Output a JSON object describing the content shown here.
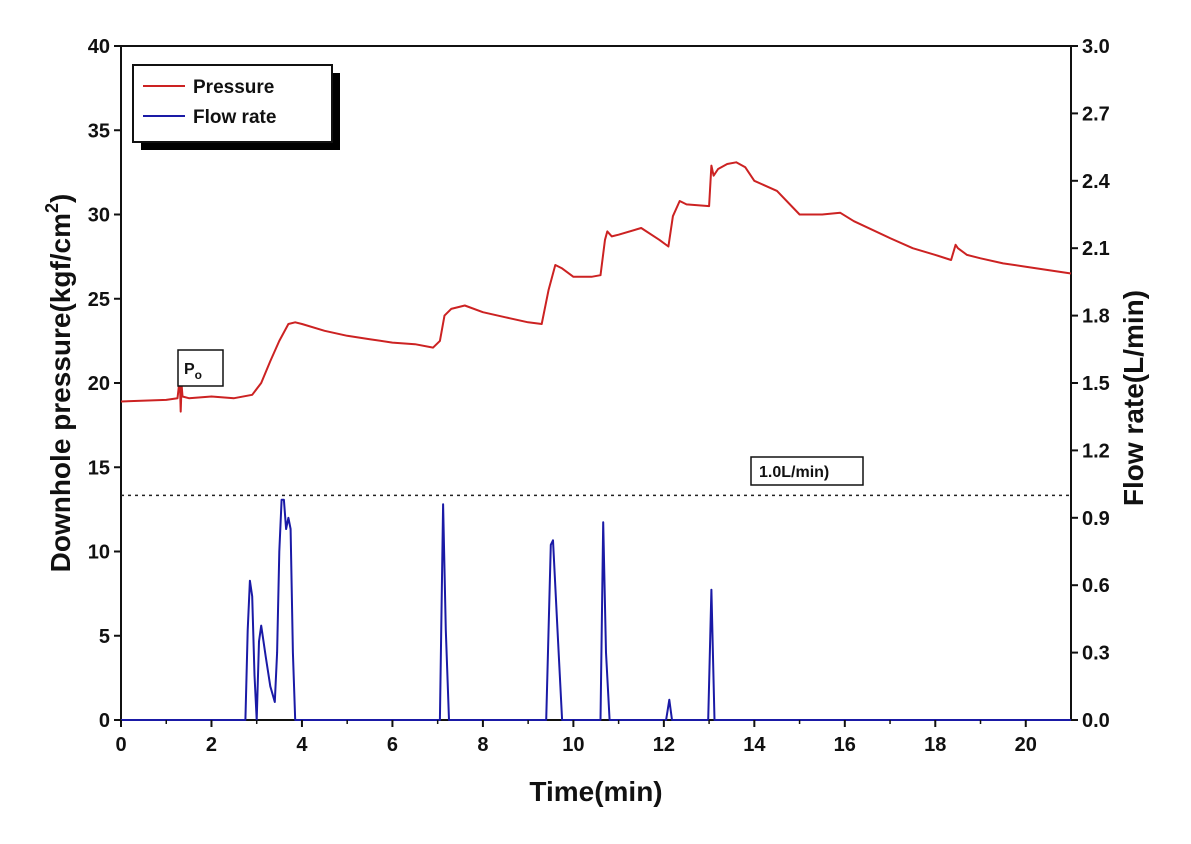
{
  "colors": {
    "pressure": "#cc2222",
    "flow": "#1a1aa6",
    "axis": "#111111",
    "reference_line": "#222222"
  },
  "chart_data": {
    "type": "line",
    "title": "",
    "xlabel": "Time(min)",
    "ylabel_left_main": "Downhole  pressure(kgf/cm",
    "ylabel_left_sup": "2",
    "ylabel_left_end": ")",
    "ylabel_right": "Flow rate(L/min)",
    "xlim": [
      0,
      21
    ],
    "ylim_left": [
      0,
      40
    ],
    "ylim_right": [
      0,
      3.0
    ],
    "x_ticks": [
      0,
      2,
      4,
      6,
      8,
      10,
      12,
      14,
      16,
      18,
      20
    ],
    "x_tick_labels": [
      "0",
      "2",
      "4",
      "6",
      "8",
      "10",
      "12",
      "14",
      "16",
      "18",
      "20"
    ],
    "y_left_ticks": [
      0,
      5,
      10,
      15,
      20,
      25,
      30,
      35,
      40
    ],
    "y_left_tick_labels": [
      "0",
      "5",
      "10",
      "15",
      "20",
      "25",
      "30",
      "35",
      "40"
    ],
    "y_right_ticks": [
      0,
      0.3,
      0.6,
      0.9,
      1.2,
      1.5,
      1.8,
      2.1,
      2.4,
      2.7,
      3.0
    ],
    "y_right_tick_labels": [
      "0.0",
      "0.3",
      "0.6",
      "0.9",
      "1.2",
      "1.5",
      "1.8",
      "2.1",
      "2.4",
      "2.7",
      "3.0"
    ],
    "grid": false,
    "legend_position": "top-left",
    "series": [
      {
        "name": "Pressure",
        "axis": "left",
        "x": [
          0,
          1.0,
          1.25,
          1.3,
          1.32,
          1.34,
          1.36,
          1.5,
          2.0,
          2.5,
          2.9,
          3.1,
          3.3,
          3.5,
          3.7,
          3.85,
          4.0,
          4.5,
          5.0,
          5.5,
          6.0,
          6.5,
          6.9,
          7.05,
          7.15,
          7.3,
          7.6,
          8.0,
          8.5,
          9.0,
          9.3,
          9.45,
          9.6,
          9.75,
          10.0,
          10.4,
          10.6,
          10.7,
          10.75,
          10.85,
          11.0,
          11.5,
          11.9,
          12.1,
          12.2,
          12.35,
          12.5,
          13.0,
          13.05,
          13.1,
          13.2,
          13.4,
          13.6,
          13.8,
          14.0,
          14.5,
          15.0,
          15.5,
          15.9,
          16.2,
          17.0,
          17.5,
          18.0,
          18.35,
          18.45,
          18.5,
          18.7,
          19.0,
          19.5,
          20.0,
          20.5,
          21.0
        ],
        "values": [
          18.9,
          19.0,
          19.1,
          20.3,
          18.3,
          19.9,
          19.2,
          19.1,
          19.2,
          19.1,
          19.3,
          20.0,
          21.3,
          22.5,
          23.5,
          23.6,
          23.5,
          23.1,
          22.8,
          22.6,
          22.4,
          22.3,
          22.1,
          22.5,
          24.0,
          24.4,
          24.6,
          24.2,
          23.9,
          23.6,
          23.5,
          25.5,
          27.0,
          26.8,
          26.3,
          26.3,
          26.4,
          28.5,
          29.0,
          28.7,
          28.8,
          29.2,
          28.5,
          28.1,
          29.9,
          30.8,
          30.6,
          30.5,
          32.9,
          32.3,
          32.7,
          33.0,
          33.1,
          32.8,
          32.0,
          31.4,
          30.0,
          30.0,
          30.1,
          29.6,
          28.6,
          28.0,
          27.6,
          27.3,
          28.2,
          28.0,
          27.6,
          27.4,
          27.1,
          26.9,
          26.7,
          26.5
        ]
      },
      {
        "name": "Flow rate",
        "axis": "right",
        "x": [
          0,
          2.75,
          2.8,
          2.85,
          2.9,
          2.95,
          3.0,
          3.05,
          3.1,
          3.2,
          3.3,
          3.4,
          3.45,
          3.5,
          3.55,
          3.6,
          3.65,
          3.7,
          3.75,
          3.8,
          3.85,
          3.9,
          7.05,
          7.12,
          7.18,
          7.25,
          9.4,
          9.5,
          9.55,
          9.65,
          9.75,
          10.6,
          10.66,
          10.72,
          10.8,
          12.05,
          12.12,
          12.18,
          12.98,
          13.05,
          13.12,
          21.0
        ],
        "values": [
          0,
          0,
          0.4,
          0.62,
          0.55,
          0.2,
          0.0,
          0.35,
          0.42,
          0.28,
          0.15,
          0.08,
          0.3,
          0.75,
          0.98,
          0.98,
          0.85,
          0.9,
          0.85,
          0.3,
          0.0,
          0,
          0,
          0.96,
          0.4,
          0,
          0,
          0.78,
          0.8,
          0.4,
          0,
          0,
          0.88,
          0.3,
          0,
          0,
          0.09,
          0,
          0,
          0.58,
          0,
          0
        ]
      }
    ],
    "reference_line": {
      "axis": "right",
      "value": 1.0,
      "label": "1.0L/min)"
    },
    "annotation_po": {
      "x": 1.32,
      "y": 20.4,
      "label_main": "P",
      "label_sub": "o"
    }
  }
}
